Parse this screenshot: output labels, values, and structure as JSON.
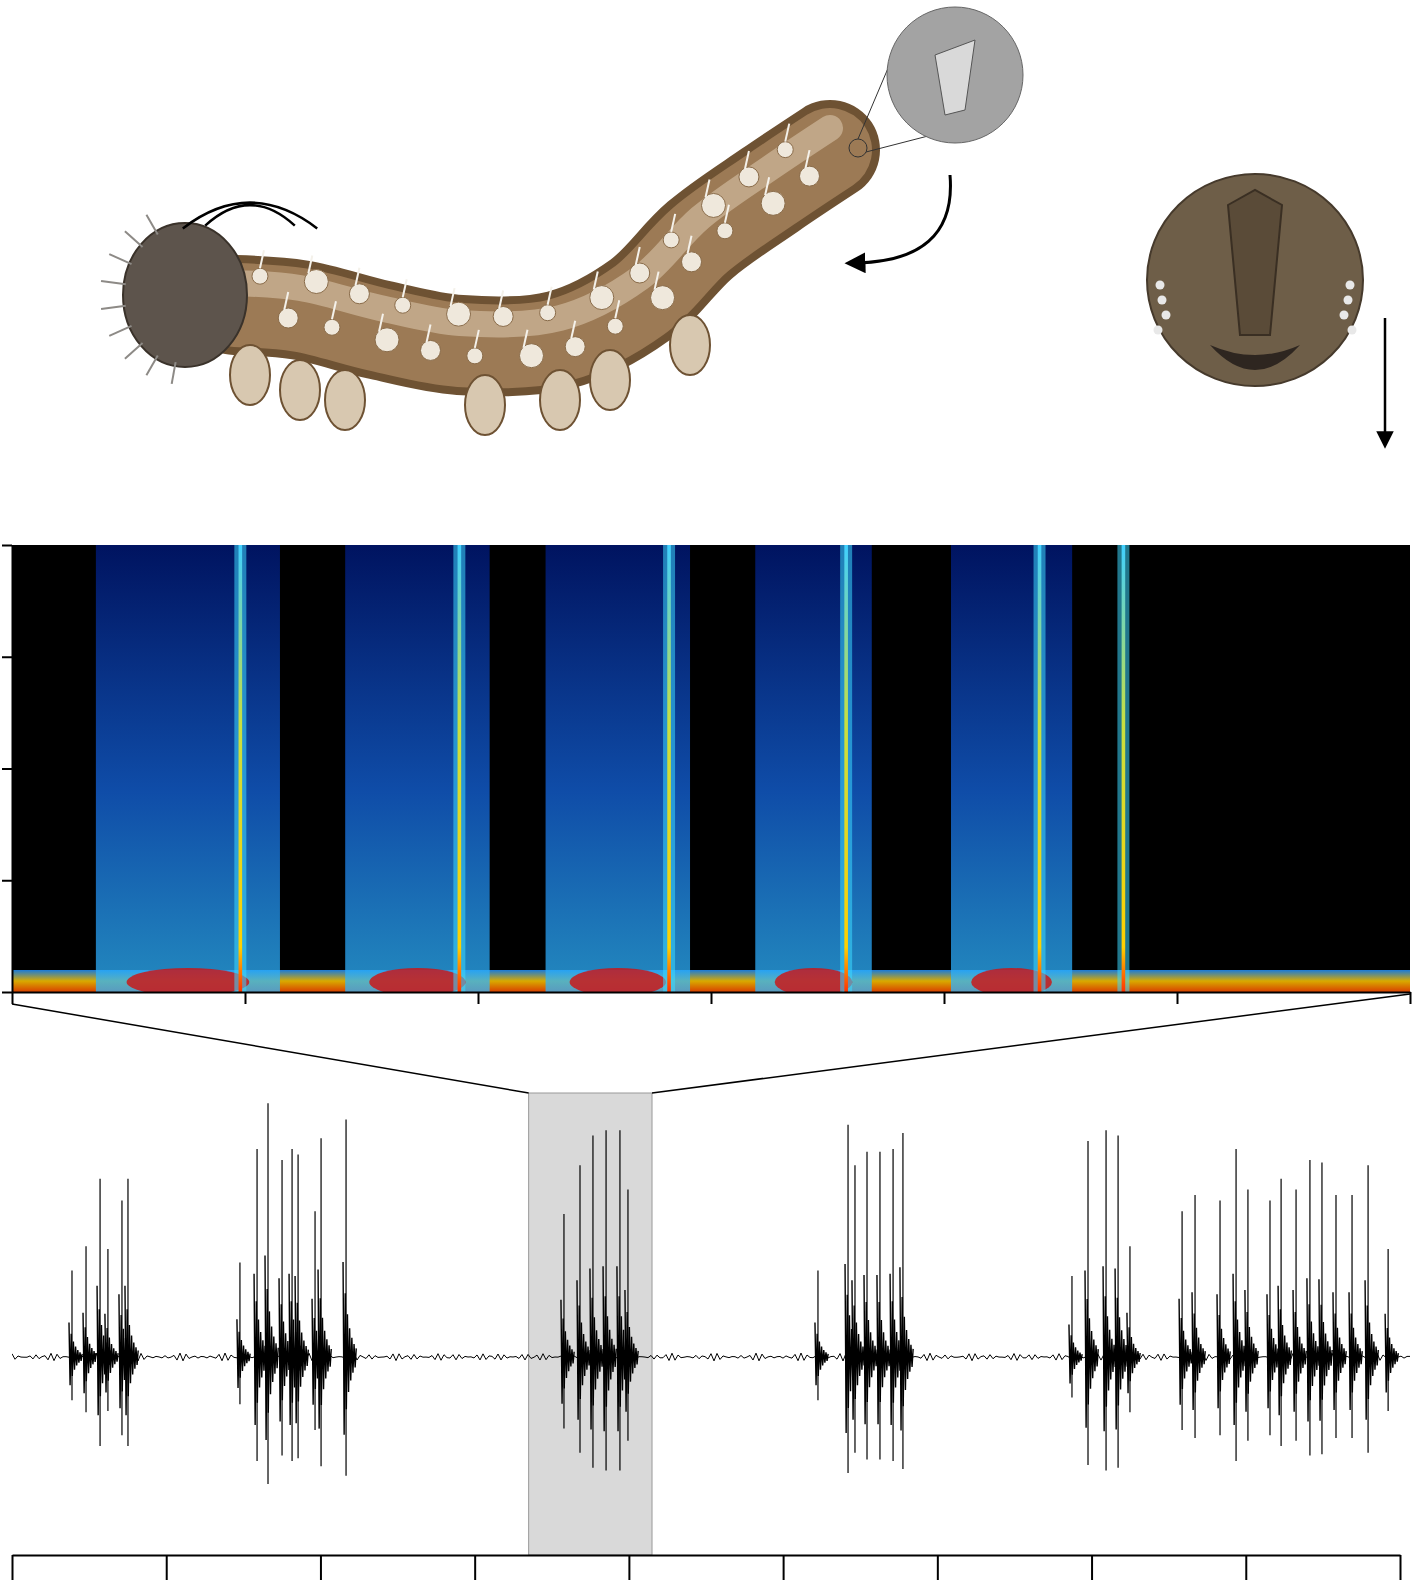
{
  "chart_data": [
    {
      "type": "spectrogram",
      "xlim": [
        0,
        60
      ],
      "xticks": [
        0,
        10,
        20,
        30,
        40,
        50,
        60
      ],
      "ylim": [
        0,
        40
      ],
      "yticks": [
        0,
        10,
        20,
        30,
        40
      ],
      "tick_labels": false,
      "clicks": [
        9.8,
        19.2,
        28.2,
        35.8,
        44.1,
        47.7
      ],
      "bursts": [
        [
          3.6,
          11.5
        ],
        [
          14.3,
          20.5
        ],
        [
          22.9,
          29.1
        ],
        [
          31.9,
          36.9
        ],
        [
          40.3,
          45.5
        ]
      ]
    },
    {
      "type": "oscillogram",
      "x": [
        38.9,
        48.0,
        57.1,
        62.2,
        71.3,
        75.2,
        147.8,
        158.9,
        166.0,
        175.1,
        181.6,
        185.5,
        196.5,
        200.4,
        216.6,
        357.9,
        368.3,
        376.7,
        385.2,
        394.2,
        399.4,
        522.6,
        542.1,
        546.6,
        554.4,
        562.8,
        571.3,
        577.7,
        687.3,
        697.7,
        709.4,
        717.2,
        724.9,
        758.7,
        767.1,
        783.3,
        793.7,
        801.4,
        815.7,
        822.9,
        832.6,
        841.6,
        849.4,
        858.5,
        868.9,
        879.3,
        892.3
      ],
      "series": [
        {
          "values": [
            0.32,
            0.41,
            0.66,
            0.4,
            0.58,
            0.66,
            0.35,
            0.77,
            0.94,
            0.73,
            0.77,
            0.75,
            0.54,
            0.81,
            0.88,
            0.53,
            0.71,
            0.82,
            0.84,
            0.84,
            0.62,
            0.32,
            0.86,
            0.71,
            0.76,
            0.76,
            0.77,
            0.83,
            0.3,
            0.8,
            0.84,
            0.82,
            0.41,
            0.54,
            0.6,
            0.58,
            0.77,
            0.62,
            0.58,
            0.66,
            0.62,
            0.73,
            0.72,
            0.6,
            0.6,
            0.71,
            0.4
          ]
        }
      ],
      "xlim": [
        0,
        900
      ],
      "xticks": [
        0,
        100,
        200,
        300,
        400,
        500,
        600,
        700,
        800,
        900
      ],
      "ylim": [
        -1,
        1
      ],
      "tick_labels": false,
      "highlight": [
        335,
        415
      ]
    }
  ]
}
